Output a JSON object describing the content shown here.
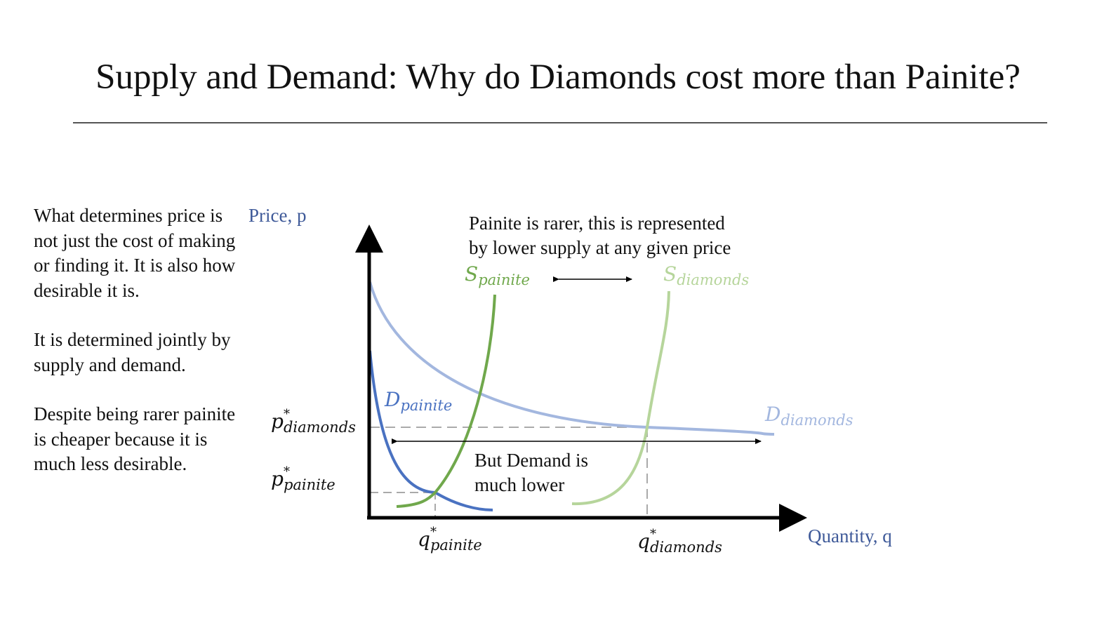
{
  "slide": {
    "title": "Supply and Demand: Why do Diamonds cost more than Painite?"
  },
  "side_text": {
    "p1": "What determines price is not just the cost of making or finding it. It is also how desirable it is.",
    "p2": "It is determined jointly by supply and demand.",
    "p3": "Despite being rarer painite is cheaper because it is much less desirable."
  },
  "diagram": {
    "axis_y_label": "Price, p",
    "axis_x_label": "Quantity, q",
    "annotation_top_line1": "Painite is rarer, this is represented",
    "annotation_top_line2": "by lower supply at any given price",
    "annotation_mid_line1": "But Demand is",
    "annotation_mid_line2": "much lower",
    "supply_painite": {
      "main": "S",
      "sub": "painite"
    },
    "supply_diamonds": {
      "main": "S",
      "sub": "diamonds"
    },
    "demand_painite": {
      "main": "D",
      "sub": "painite"
    },
    "demand_diamonds": {
      "main": "D",
      "sub": "diamonds"
    },
    "p_star_diamonds": {
      "main": "p",
      "sup": "*",
      "sub": "diamonds"
    },
    "p_star_painite": {
      "main": "p",
      "sup": "*",
      "sub": "painite"
    },
    "q_star_painite": {
      "main": "q",
      "sup": "*",
      "sub": "painite"
    },
    "q_star_diamonds": {
      "main": "q",
      "sup": "*",
      "sub": "diamonds"
    }
  },
  "colors": {
    "axis_label": "#3f5a99",
    "painite_supply": "#70a84c",
    "diamonds_supply": "#b6d59b",
    "painite_demand": "#4a72c1",
    "diamonds_demand": "#a3b7df",
    "guide": "#aaaaaa"
  }
}
